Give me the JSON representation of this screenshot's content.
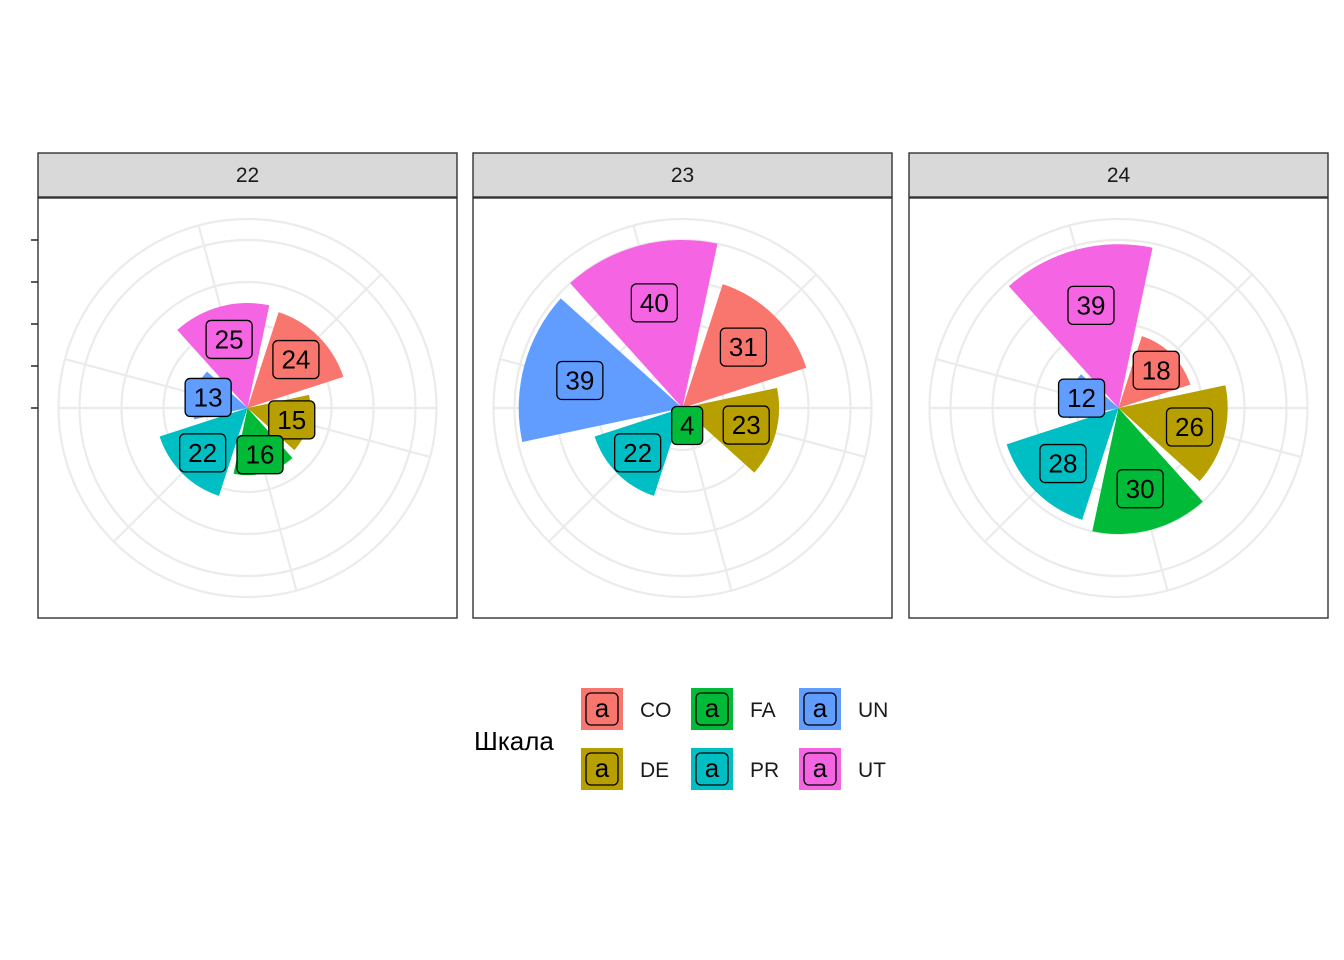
{
  "chart_data": {
    "type": "bar",
    "coord": "polar",
    "facets": [
      "22",
      "23",
      "24"
    ],
    "categories": [
      "CO",
      "DE",
      "FA",
      "PR",
      "UN",
      "UT"
    ],
    "colors": {
      "CO": "#F8766D",
      "DE": "#B79F00",
      "FA": "#00BA38",
      "PR": "#00BFC4",
      "UN": "#619CFF",
      "UT": "#F564E3"
    },
    "series": [
      {
        "facet": "22",
        "values": [
          24,
          15,
          16,
          22,
          13,
          25
        ]
      },
      {
        "facet": "23",
        "values": [
          31,
          23,
          4,
          22,
          39,
          40
        ]
      },
      {
        "facet": "24",
        "values": [
          18,
          26,
          30,
          28,
          12,
          39
        ]
      }
    ],
    "ylim": [
      0,
      45
    ],
    "grid": true,
    "legend": {
      "title": "Шкала",
      "position": "bottom",
      "key_glyph": "a",
      "items": [
        "CO",
        "DE",
        "FA",
        "PR",
        "UN",
        "UT"
      ]
    }
  }
}
